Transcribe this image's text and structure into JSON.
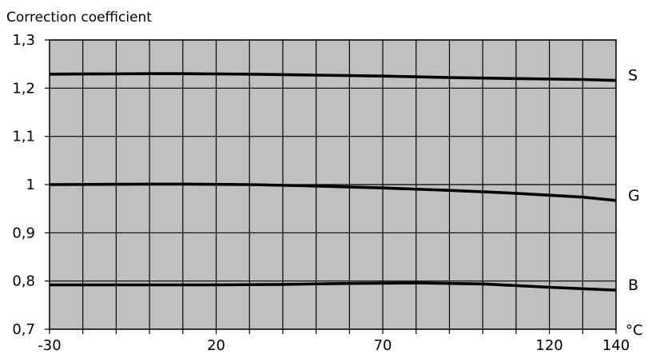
{
  "chart_data": {
    "type": "line",
    "title": "Correction coefficient",
    "xlabel": "°C",
    "ylabel": "",
    "xlim": [
      -30,
      140
    ],
    "ylim": [
      0.7,
      1.3
    ],
    "x_ticks": [
      -30,
      20,
      70,
      120,
      140
    ],
    "x_tick_labels": [
      "-30",
      "20",
      "70",
      "120",
      "140"
    ],
    "y_ticks": [
      0.7,
      0.8,
      0.9,
      1.0,
      1.1,
      1.2,
      1.3
    ],
    "y_tick_labels": [
      "0,7",
      "0,8",
      "0,9",
      "1",
      "1,1",
      "1,2",
      "1,3"
    ],
    "grid": true,
    "grid_x_step": 10,
    "grid_y_step": 0.1,
    "plot_background": "#c0c0c0",
    "line_color": "#000000",
    "series": [
      {
        "name": "S",
        "x": [
          -30,
          0,
          10,
          30,
          50,
          70,
          90,
          110,
          130,
          140
        ],
        "y": [
          1.229,
          1.23,
          1.23,
          1.229,
          1.227,
          1.225,
          1.222,
          1.22,
          1.218,
          1.216
        ]
      },
      {
        "name": "G",
        "x": [
          -30,
          0,
          10,
          30,
          50,
          70,
          90,
          110,
          130,
          140
        ],
        "y": [
          1.0,
          1.001,
          1.001,
          1.0,
          0.997,
          0.993,
          0.988,
          0.982,
          0.974,
          0.967
        ]
      },
      {
        "name": "B",
        "x": [
          -30,
          0,
          20,
          40,
          60,
          80,
          100,
          120,
          130,
          140
        ],
        "y": [
          0.792,
          0.792,
          0.792,
          0.793,
          0.795,
          0.796,
          0.794,
          0.787,
          0.784,
          0.781
        ]
      }
    ]
  }
}
